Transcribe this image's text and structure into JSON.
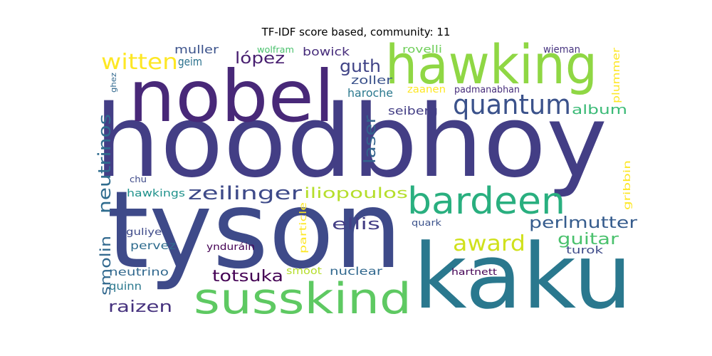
{
  "chart_data": {
    "type": "wordcloud",
    "title": "TF-IDF score based, community: 11",
    "words": [
      {
        "text": "hoodbhoy",
        "color": "#433e85"
      },
      {
        "text": "tyson",
        "color": "#3e4a89"
      },
      {
        "text": "kaku",
        "color": "#2a788e"
      },
      {
        "text": "nobel",
        "color": "#482878"
      },
      {
        "text": "hawking",
        "color": "#8fd744"
      },
      {
        "text": "susskind",
        "color": "#5ec962"
      },
      {
        "text": "bardeen",
        "color": "#29af7f"
      },
      {
        "text": "quantum",
        "color": "#3b528b"
      },
      {
        "text": "witten",
        "color": "#fde725"
      },
      {
        "text": "zeilinger",
        "color": "#3e4a89"
      },
      {
        "text": "award",
        "color": "#d0e11c"
      },
      {
        "text": "perlmutter",
        "color": "#365c8d"
      },
      {
        "text": "iliopoulos",
        "color": "#b5de2b"
      },
      {
        "text": "neutrinos",
        "color": "#2f6c8e"
      },
      {
        "text": "laser",
        "color": "#33638d"
      },
      {
        "text": "guitar",
        "color": "#4ac16d"
      },
      {
        "text": "ellis",
        "color": "#433e85"
      },
      {
        "text": "totsuka",
        "color": "#440154"
      },
      {
        "text": "raizen",
        "color": "#46327e"
      },
      {
        "text": "smolin",
        "color": "#31688e"
      },
      {
        "text": "album",
        "color": "#3aba76"
      },
      {
        "text": "lópez",
        "color": "#481f70"
      },
      {
        "text": "guth",
        "color": "#414487"
      },
      {
        "text": "bowick",
        "color": "#472d7b"
      },
      {
        "text": "zoller",
        "color": "#3b528b"
      },
      {
        "text": "haroche",
        "color": "#2a788e"
      },
      {
        "text": "seiberg",
        "color": "#433e85"
      },
      {
        "text": "muller",
        "color": "#3b528b"
      },
      {
        "text": "geim",
        "color": "#2c728e"
      },
      {
        "text": "wolfram",
        "color": "#4ac16d"
      },
      {
        "text": "rovelli",
        "color": "#6ece58"
      },
      {
        "text": "wieman",
        "color": "#46337f"
      },
      {
        "text": "plummer",
        "color": "#fde725"
      },
      {
        "text": "zaanen",
        "color": "#fde725"
      },
      {
        "text": "padmanabhan",
        "color": "#472d7b"
      },
      {
        "text": "ghez",
        "color": "#31688e"
      },
      {
        "text": "chu",
        "color": "#3e4a89"
      },
      {
        "text": "hawkings",
        "color": "#20928c"
      },
      {
        "text": "gribbin",
        "color": "#fde725"
      },
      {
        "text": "particle",
        "color": "#fde725"
      },
      {
        "text": "quark",
        "color": "#3b528b"
      },
      {
        "text": "guliyev",
        "color": "#3e4a89"
      },
      {
        "text": "pervez",
        "color": "#2f6c8e"
      },
      {
        "text": "ynduráin",
        "color": "#440154"
      },
      {
        "text": "turok",
        "color": "#3e4a89"
      },
      {
        "text": "neutrino",
        "color": "#31688e"
      },
      {
        "text": "smoot",
        "color": "#b5de2b"
      },
      {
        "text": "nuclear",
        "color": "#31688e"
      },
      {
        "text": "quinn",
        "color": "#2a788e"
      },
      {
        "text": "hartnett",
        "color": "#440154"
      }
    ]
  }
}
